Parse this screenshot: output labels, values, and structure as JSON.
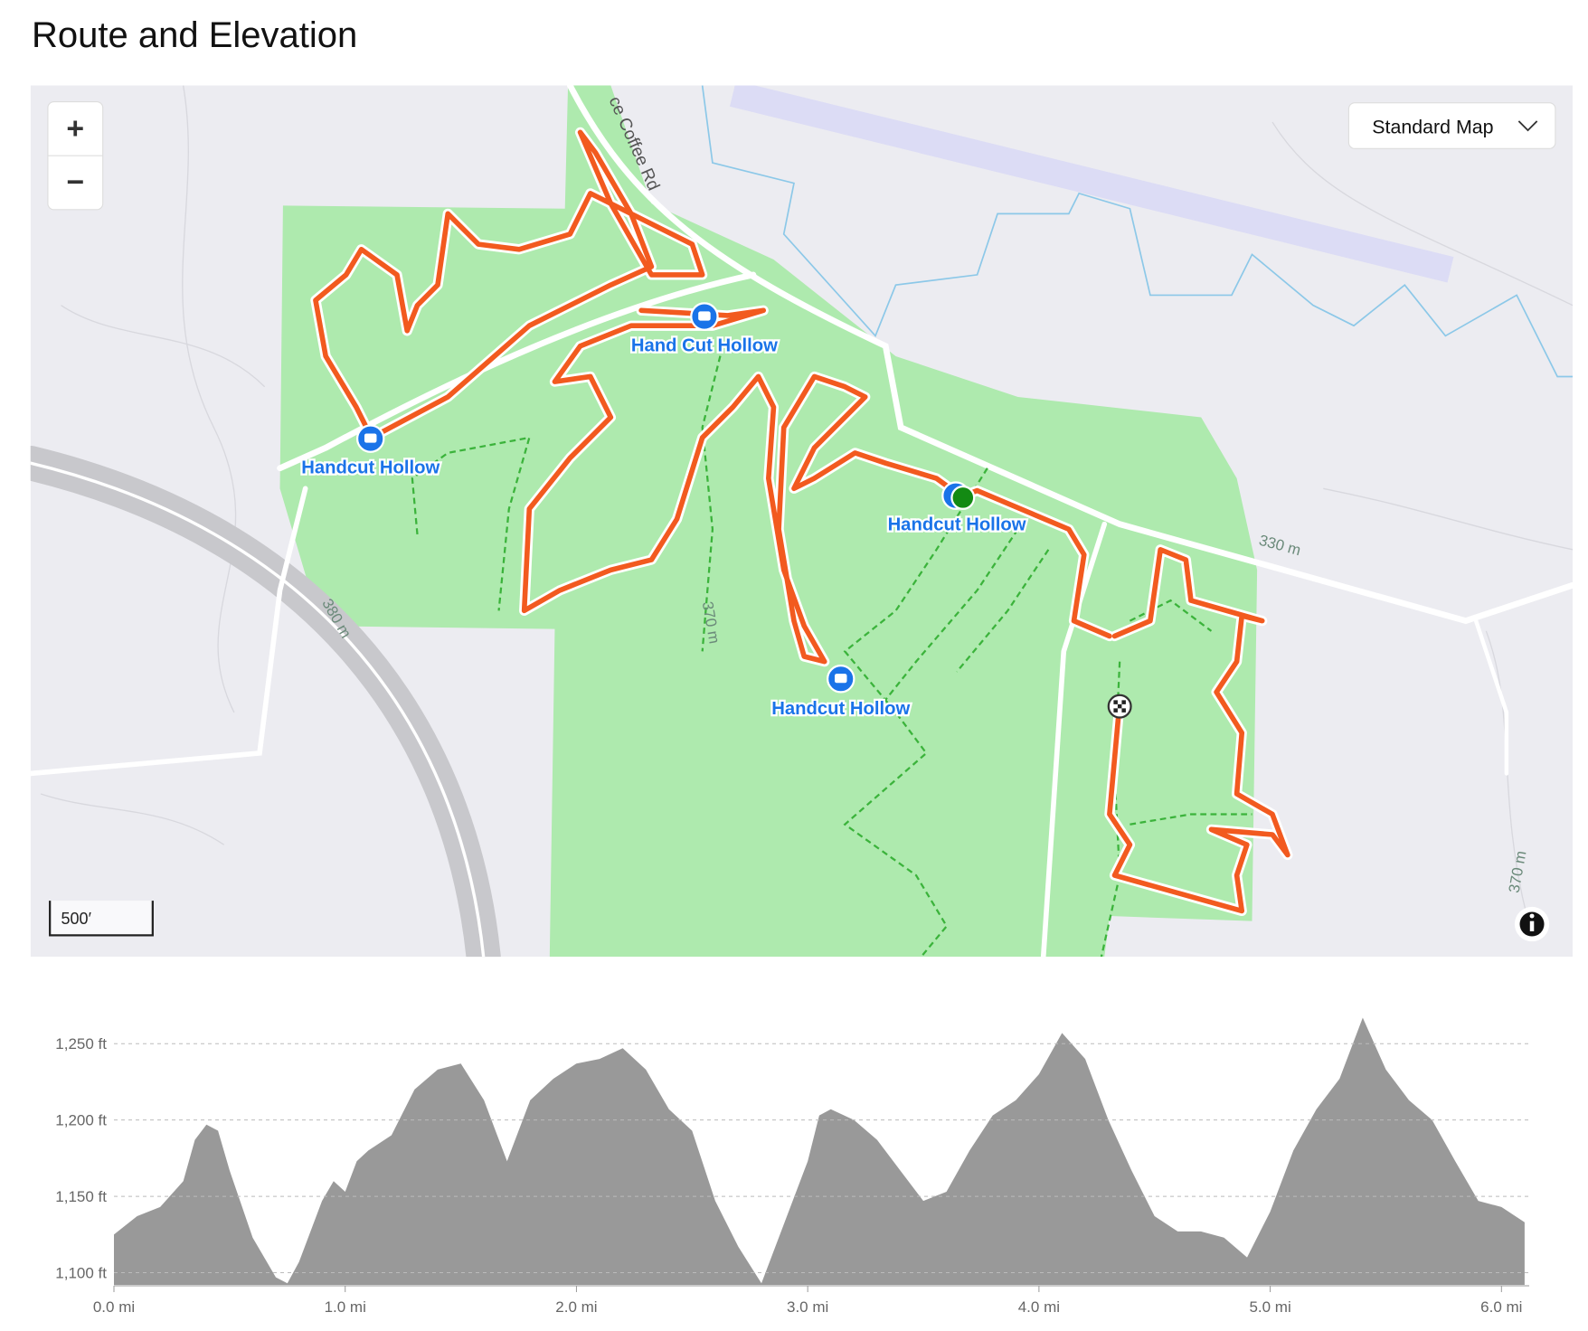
{
  "title": "Route and Elevation",
  "map": {
    "zoom_in": "+",
    "zoom_out": "−",
    "map_type": "Standard Map",
    "scale": "500′",
    "road_label": "ce Coffee Rd",
    "contour_labels": [
      "330 m",
      "380 m",
      "370 m",
      "370 m"
    ],
    "waypoints": [
      "Hand Cut Hollow",
      "Handcut Hollow",
      "Handcut Hollow",
      "Handcut Hollow"
    ]
  },
  "chart_data": {
    "type": "area",
    "color": "#999999",
    "grid": true,
    "x": [
      0,
      0.1,
      0.2,
      0.3,
      0.35,
      0.4,
      0.45,
      0.5,
      0.6,
      0.7,
      0.75,
      0.8,
      0.9,
      0.95,
      1.0,
      1.05,
      1.1,
      1.2,
      1.3,
      1.4,
      1.5,
      1.6,
      1.65,
      1.7,
      1.8,
      1.9,
      2.0,
      2.1,
      2.2,
      2.3,
      2.4,
      2.5,
      2.6,
      2.7,
      2.8,
      2.9,
      3.0,
      3.05,
      3.1,
      3.2,
      3.3,
      3.4,
      3.5,
      3.6,
      3.7,
      3.8,
      3.9,
      4.0,
      4.1,
      4.2,
      4.3,
      4.4,
      4.5,
      4.6,
      4.7,
      4.8,
      4.9,
      5.0,
      5.1,
      5.2,
      5.3,
      5.4,
      5.5,
      5.6,
      5.7,
      5.8,
      5.9,
      6.0,
      6.1
    ],
    "values": [
      1125,
      1137,
      1143,
      1160,
      1187,
      1197,
      1193,
      1167,
      1123,
      1097,
      1093,
      1107,
      1147,
      1160,
      1153,
      1173,
      1180,
      1190,
      1220,
      1233,
      1237,
      1213,
      1193,
      1173,
      1213,
      1227,
      1237,
      1240,
      1247,
      1233,
      1207,
      1193,
      1147,
      1117,
      1093,
      1133,
      1173,
      1203,
      1207,
      1200,
      1187,
      1167,
      1147,
      1153,
      1180,
      1203,
      1213,
      1230,
      1257,
      1240,
      1200,
      1167,
      1137,
      1127,
      1127,
      1123,
      1110,
      1140,
      1180,
      1207,
      1227,
      1267,
      1233,
      1213,
      1200,
      1173,
      1147,
      1143,
      1133
    ],
    "xlim": [
      0,
      6.12
    ],
    "ylim": [
      1092,
      1275
    ],
    "xticks": [
      {
        "value": 0,
        "label": "0.0 mi"
      },
      {
        "value": 1,
        "label": "1.0 mi"
      },
      {
        "value": 2,
        "label": "2.0 mi"
      },
      {
        "value": 3,
        "label": "3.0 mi"
      },
      {
        "value": 4,
        "label": "4.0 mi"
      },
      {
        "value": 5,
        "label": "5.0 mi"
      },
      {
        "value": 6,
        "label": "6.0 mi"
      }
    ],
    "yticks": [
      {
        "value": 1100,
        "label": "1,100 ft"
      },
      {
        "value": 1150,
        "label": "1,150 ft"
      },
      {
        "value": 1200,
        "label": "1,200 ft"
      },
      {
        "value": 1250,
        "label": "1,250 ft"
      }
    ]
  }
}
